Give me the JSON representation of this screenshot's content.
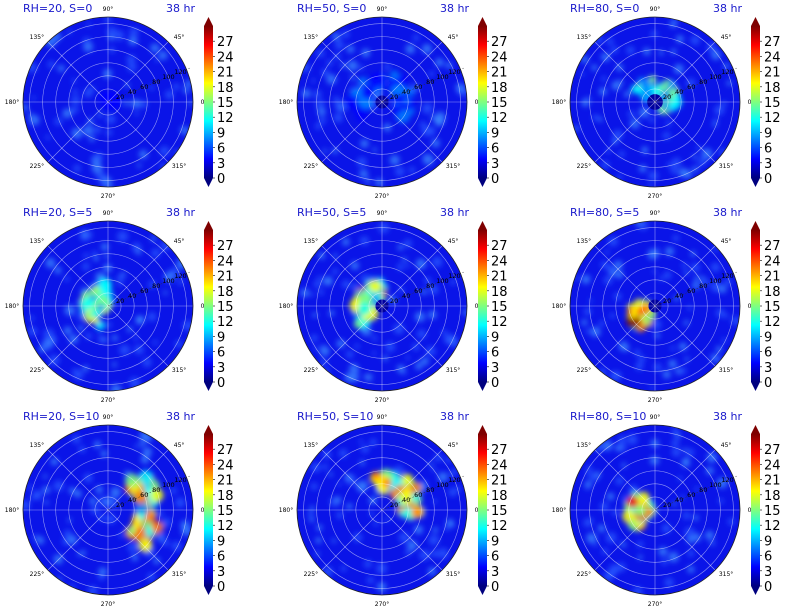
{
  "figure": {
    "colormap_colors": [
      "#00007f",
      "#0000ff",
      "#007fff",
      "#00ffff",
      "#7fff7f",
      "#ffff00",
      "#ff7f00",
      "#ff0000",
      "#7f0000"
    ],
    "colorbar_ticks": [
      "0",
      "3",
      "6",
      "9",
      "12",
      "15",
      "18",
      "21",
      "24",
      "27"
    ],
    "angle_ticks": [
      "0°",
      "45°",
      "90°",
      "135°",
      "180°",
      "225°",
      "270°",
      "315°"
    ],
    "radial_ticks": [
      "20",
      "40",
      "60",
      "80",
      "100",
      "120"
    ]
  },
  "chart_data": [
    {
      "type": "heatmap",
      "title": "RH=20, S=0",
      "time": "38 hr",
      "vmin": 0,
      "vmax": 30,
      "grid": true,
      "peak": 5,
      "eye": 0,
      "core": 0,
      "core_angle": 0
    },
    {
      "type": "heatmap",
      "title": "RH=50, S=0",
      "time": "38 hr",
      "vmin": 0,
      "vmax": 30,
      "grid": true,
      "peak": 9,
      "eye": 10,
      "core": 35,
      "core_angle": 90
    },
    {
      "type": "heatmap",
      "title": "RH=80, S=0",
      "time": "38 hr",
      "vmin": 0,
      "vmax": 30,
      "grid": true,
      "peak": 16,
      "eye": 12,
      "core": 22,
      "core_angle": 60
    },
    {
      "type": "heatmap",
      "title": "RH=20, S=5",
      "time": "38 hr",
      "vmin": 0,
      "vmax": 30,
      "grid": true,
      "peak": 19,
      "eye": 0,
      "core": 20,
      "core_angle": 170
    },
    {
      "type": "heatmap",
      "title": "RH=50, S=5",
      "time": "38 hr",
      "vmin": 0,
      "vmax": 30,
      "grid": true,
      "peak": 22,
      "eye": 10,
      "core": 30,
      "core_angle": 160
    },
    {
      "type": "heatmap",
      "title": "RH=80, S=5",
      "time": "38 hr",
      "vmin": 0,
      "vmax": 30,
      "grid": true,
      "peak": 29,
      "eye": 10,
      "core": 22,
      "core_angle": 210
    },
    {
      "type": "heatmap",
      "title": "RH=20, S=10",
      "time": "38 hr",
      "vmin": 0,
      "vmax": 30,
      "grid": true,
      "peak": 26,
      "eye": 0,
      "core": 65,
      "core_angle": 0
    },
    {
      "type": "heatmap",
      "title": "RH=50, S=10",
      "time": "38 hr",
      "vmin": 0,
      "vmax": 30,
      "grid": true,
      "peak": 25,
      "eye": 0,
      "core": 45,
      "core_angle": 50
    },
    {
      "type": "heatmap",
      "title": "RH=80, S=10",
      "time": "38 hr",
      "vmin": 0,
      "vmax": 30,
      "grid": true,
      "peak": 27,
      "eye": 0,
      "core": 25,
      "core_angle": 180
    }
  ]
}
